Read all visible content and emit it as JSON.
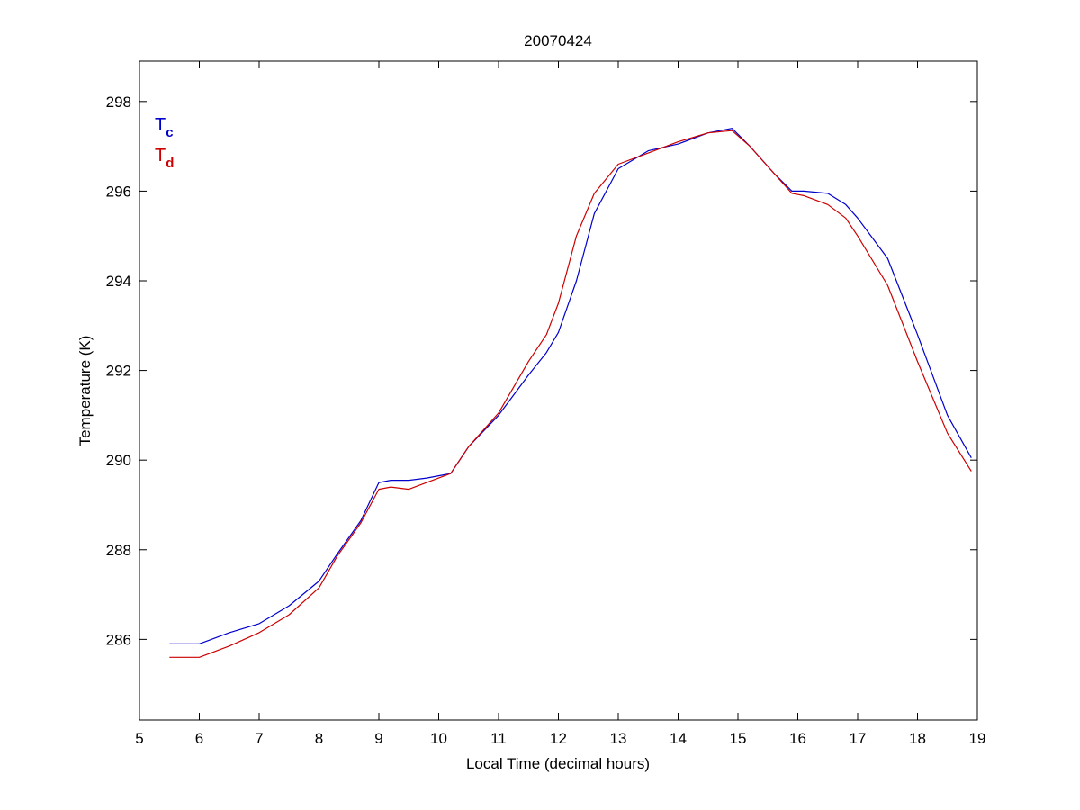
{
  "chart_data": {
    "type": "line",
    "title": "20070424",
    "xlabel": "Local Time (decimal hours)",
    "ylabel": "Temperature (K)",
    "xlim": [
      5,
      19
    ],
    "ylim": [
      284.2,
      298.9
    ],
    "xticks": [
      5,
      6,
      7,
      8,
      9,
      10,
      11,
      12,
      13,
      14,
      15,
      16,
      17,
      18,
      19
    ],
    "yticks": [
      286,
      288,
      290,
      292,
      294,
      296,
      298
    ],
    "grid": false,
    "legend": {
      "placement": "top-left",
      "entries": [
        {
          "base": "T",
          "sub": "c",
          "color": "#0000cc"
        },
        {
          "base": "T",
          "sub": "d",
          "color": "#cc0000"
        }
      ]
    },
    "series": [
      {
        "label": "Tc",
        "color": "#0000cc",
        "x": [
          5.5,
          6.0,
          6.2,
          6.5,
          7.0,
          7.5,
          8.0,
          8.3,
          8.7,
          9.0,
          9.2,
          9.5,
          9.8,
          10.2,
          10.5,
          11.0,
          11.5,
          11.8,
          12.0,
          12.3,
          12.6,
          13.0,
          13.5,
          14.0,
          14.5,
          14.9,
          15.2,
          15.6,
          15.9,
          16.1,
          16.5,
          16.8,
          17.0,
          17.5,
          18.0,
          18.5,
          18.9
        ],
        "y": [
          285.9,
          285.9,
          286.0,
          286.15,
          286.35,
          286.75,
          287.3,
          287.9,
          288.65,
          289.5,
          289.55,
          289.55,
          289.6,
          289.7,
          290.3,
          291.0,
          291.9,
          292.4,
          292.85,
          294.0,
          295.5,
          296.5,
          296.9,
          297.05,
          297.3,
          297.4,
          297.0,
          296.4,
          296.0,
          296.0,
          295.95,
          295.7,
          295.4,
          294.5,
          292.8,
          291.0,
          290.05
        ]
      },
      {
        "label": "Td",
        "color": "#cc0000",
        "x": [
          5.5,
          6.0,
          6.2,
          6.5,
          7.0,
          7.5,
          8.0,
          8.3,
          8.7,
          9.0,
          9.2,
          9.5,
          9.8,
          10.2,
          10.5,
          11.0,
          11.5,
          11.8,
          12.0,
          12.3,
          12.6,
          13.0,
          13.5,
          14.0,
          14.5,
          14.9,
          15.2,
          15.6,
          15.9,
          16.1,
          16.5,
          16.8,
          17.0,
          17.5,
          18.0,
          18.5,
          18.9
        ],
        "y": [
          285.6,
          285.6,
          285.7,
          285.85,
          286.15,
          286.55,
          287.15,
          287.85,
          288.6,
          289.35,
          289.4,
          289.35,
          289.5,
          289.7,
          290.3,
          291.05,
          292.2,
          292.8,
          293.5,
          295.0,
          295.95,
          296.6,
          296.85,
          297.1,
          297.3,
          297.35,
          297.0,
          296.4,
          295.95,
          295.9,
          295.7,
          295.4,
          295.0,
          293.9,
          292.2,
          290.6,
          289.75
        ]
      }
    ]
  }
}
